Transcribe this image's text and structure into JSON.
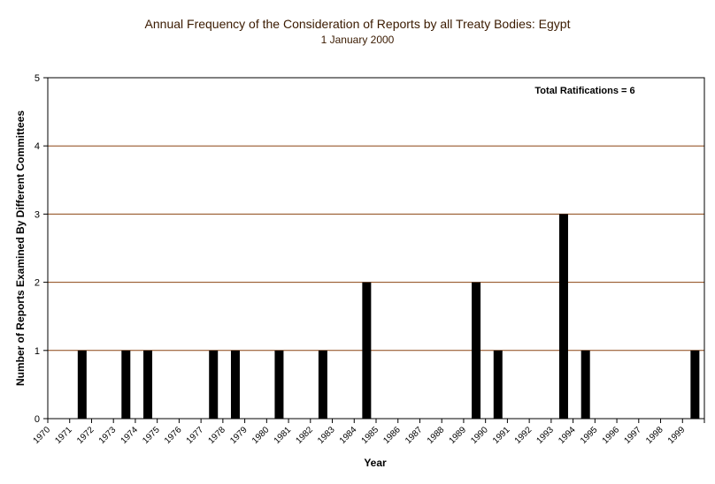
{
  "chart_data": {
    "type": "bar",
    "title": "Annual Frequency of the Consideration of Reports by all Treaty Bodies: Egypt",
    "subtitle": "1 January 2000",
    "xlabel": "Year",
    "ylabel": "Number of Reports Examined By Different Committees",
    "annotation": "Total Ratifications = 6",
    "ylim": [
      0,
      5
    ],
    "yticks": [
      "0",
      "1",
      "2",
      "3",
      "4",
      "5"
    ],
    "grid": true,
    "categories": [
      "1970",
      "1971",
      "1972",
      "1973",
      "1974",
      "1975",
      "1976",
      "1977",
      "1978",
      "1979",
      "1980",
      "1981",
      "1982",
      "1983",
      "1984",
      "1985",
      "1986",
      "1987",
      "1988",
      "1989",
      "1990",
      "1991",
      "1992",
      "1993",
      "1994",
      "1995",
      "1996",
      "1997",
      "1998",
      "1999"
    ],
    "values": [
      0,
      1,
      0,
      1,
      1,
      0,
      0,
      1,
      1,
      0,
      1,
      0,
      1,
      0,
      2,
      0,
      0,
      0,
      0,
      2,
      1,
      0,
      0,
      3,
      1,
      0,
      0,
      0,
      0,
      1
    ],
    "colors": {
      "bar": "#000000",
      "grid": "#8b4513",
      "axis": "#000000"
    }
  }
}
